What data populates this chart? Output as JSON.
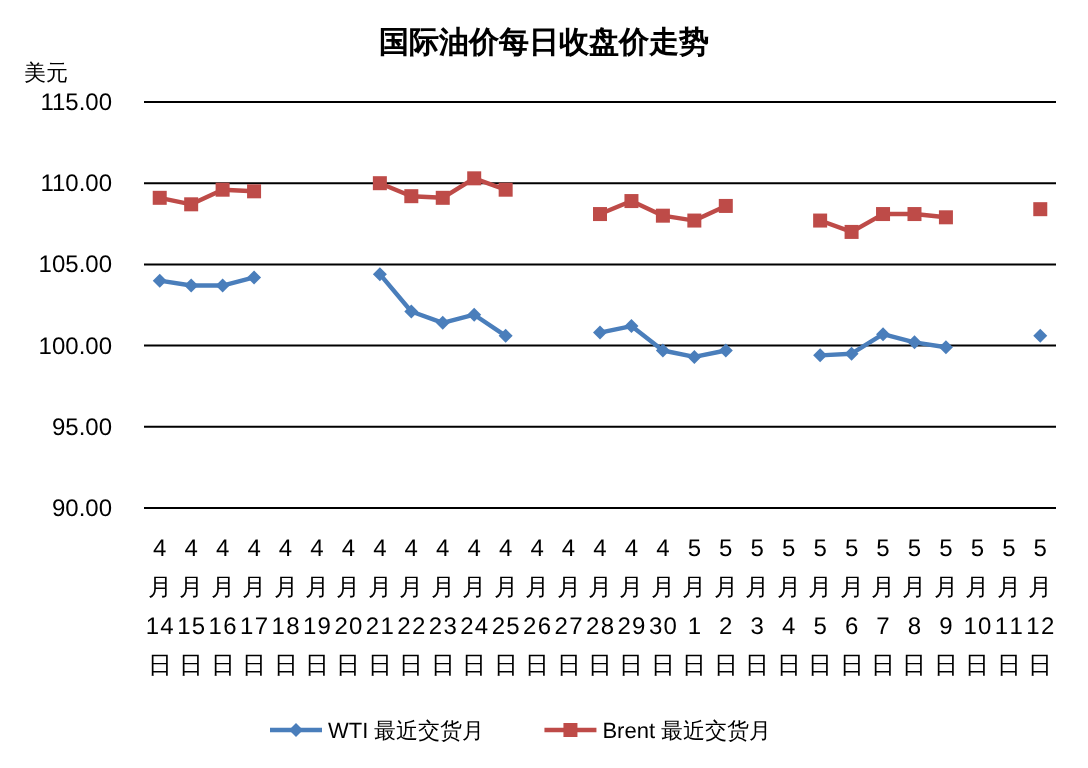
{
  "chart_data": {
    "type": "line",
    "title": "国际油价每日收盘价走势",
    "ylabel": "美元",
    "categories": [
      "4月14日",
      "4月15日",
      "4月16日",
      "4月17日",
      "4月18日",
      "4月19日",
      "4月20日",
      "4月21日",
      "4月22日",
      "4月23日",
      "4月24日",
      "4月25日",
      "4月26日",
      "4月27日",
      "4月28日",
      "4月29日",
      "4月30日",
      "5月1日",
      "5月2日",
      "5月3日",
      "5月4日",
      "5月5日",
      "5月6日",
      "5月7日",
      "5月8日",
      "5月9日",
      "5月10日",
      "5月11日",
      "5月12日"
    ],
    "series": [
      {
        "name": "WTI 最近交货月",
        "color": "#4a7ebb",
        "marker": "diamond",
        "values": [
          104.0,
          103.7,
          103.7,
          104.2,
          null,
          null,
          null,
          104.4,
          102.1,
          101.4,
          101.9,
          100.6,
          null,
          null,
          100.8,
          101.2,
          99.7,
          99.3,
          99.7,
          null,
          null,
          99.4,
          99.5,
          100.7,
          100.2,
          99.9,
          null,
          null,
          100.6
        ]
      },
      {
        "name": "Brent 最近交货月",
        "color": "#be4b48",
        "marker": "square",
        "values": [
          109.1,
          108.7,
          109.6,
          109.5,
          null,
          null,
          null,
          110.0,
          109.2,
          109.1,
          110.3,
          109.6,
          null,
          null,
          108.1,
          108.9,
          108.0,
          107.7,
          108.6,
          null,
          null,
          107.7,
          107.0,
          108.1,
          108.1,
          107.9,
          null,
          null,
          108.4
        ]
      }
    ],
    "ylim": [
      90,
      115
    ],
    "yticks": [
      {
        "value": 90,
        "label": "90.00"
      },
      {
        "value": 95,
        "label": "95.00"
      },
      {
        "value": 100,
        "label": "100.00"
      },
      {
        "value": 105,
        "label": "105.00"
      },
      {
        "value": 110,
        "label": "110.00"
      },
      {
        "value": 115,
        "label": "115.00"
      }
    ],
    "grid": "y",
    "legend": "bottom"
  }
}
